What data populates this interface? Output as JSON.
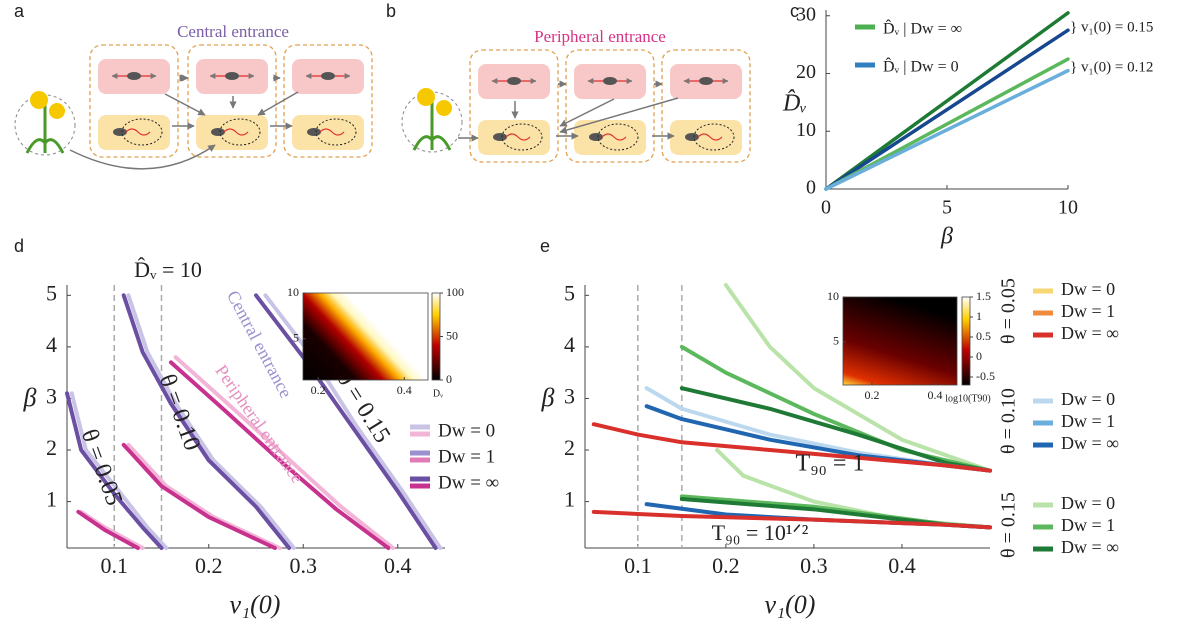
{
  "panel_labels": [
    "a",
    "b",
    "c",
    "d",
    "e"
  ],
  "diagrams": [
    {
      "title": "Central entrance"
    },
    {
      "title": "Peripheral entrance"
    }
  ],
  "chart_data": [
    {
      "type": "line",
      "xlabel": "β",
      "ylabel": "D̂ᵥ",
      "xlim": [
        0,
        10
      ],
      "ylim": [
        0,
        31
      ],
      "xticks": [
        0,
        5,
        10
      ],
      "yticks": [
        0,
        10,
        20,
        30
      ],
      "legend": [
        {
          "label": "D̂ᵥ | Dw = ∞",
          "colors": [
            "#4caf50"
          ]
        },
        {
          "label": "D̂ᵥ | Dw = 0",
          "colors": [
            "#2f7fc1"
          ]
        }
      ],
      "series": [
        {
          "color": "#1e7b34",
          "x": [
            0,
            10
          ],
          "values": [
            0,
            30.5
          ]
        },
        {
          "color": "#17478f",
          "x": [
            0,
            10
          ],
          "values": [
            0,
            27.5
          ]
        },
        {
          "color": "#5cb85c",
          "x": [
            0,
            10
          ],
          "values": [
            0,
            22.5
          ]
        },
        {
          "color": "#6aaedb",
          "x": [
            0,
            10
          ],
          "values": [
            0,
            20.5
          ]
        }
      ],
      "annotations": [
        "} v₁(0) = 0.15",
        "} v₁(0) = 0.12"
      ]
    },
    {
      "type": "line",
      "xlabel": "v₁(0)",
      "ylabel": "β",
      "xlim": [
        0.05,
        0.45
      ],
      "ylim": [
        0.1,
        5.2
      ],
      "xticks": [
        0.1,
        0.2,
        0.3,
        0.4
      ],
      "yticks": [
        1,
        2,
        3,
        4,
        5
      ],
      "vlines": [
        0.1,
        0.15
      ],
      "legend": [
        {
          "label": "Dw = 0",
          "colors": [
            "#c9c3e6",
            "#f2b5d8"
          ]
        },
        {
          "label": "Dw = 1",
          "colors": [
            "#9b8fcf",
            "#e07bb8"
          ]
        },
        {
          "label": "Dw = ∞",
          "colors": [
            "#6a4fa3",
            "#c8328f"
          ]
        }
      ],
      "series": [
        {
          "color": "#c9c3e6",
          "x": [
            0.055,
            0.07,
            0.105,
            0.135,
            0.155
          ],
          "values": [
            3.1,
            2.0,
            1.2,
            0.5,
            0.1
          ]
        },
        {
          "color": "#6a4fa3",
          "x": [
            0.05,
            0.065,
            0.1,
            0.13,
            0.15
          ],
          "values": [
            3.1,
            2.0,
            1.15,
            0.5,
            0.1
          ]
        },
        {
          "color": "#f2b5d8",
          "x": [
            0.065,
            0.09,
            0.13
          ],
          "values": [
            0.8,
            0.5,
            0.1
          ]
        },
        {
          "color": "#c8328f",
          "x": [
            0.062,
            0.09,
            0.125
          ],
          "values": [
            0.8,
            0.45,
            0.1
          ]
        },
        {
          "color": "#c9c3e6",
          "x": [
            0.115,
            0.135,
            0.165,
            0.205,
            0.255,
            0.29
          ],
          "values": [
            5.0,
            3.9,
            2.9,
            1.8,
            0.9,
            0.1
          ]
        },
        {
          "color": "#6a4fa3",
          "x": [
            0.11,
            0.13,
            0.16,
            0.2,
            0.25,
            0.285
          ],
          "values": [
            5.0,
            3.9,
            2.9,
            1.8,
            0.9,
            0.1
          ]
        },
        {
          "color": "#f2b5d8",
          "x": [
            0.115,
            0.155,
            0.205,
            0.275
          ],
          "values": [
            2.1,
            1.3,
            0.7,
            0.1
          ]
        },
        {
          "color": "#c8328f",
          "x": [
            0.11,
            0.15,
            0.2,
            0.27
          ],
          "values": [
            2.1,
            1.3,
            0.7,
            0.1
          ]
        },
        {
          "color": "#c9c3e6",
          "x": [
            0.26,
            0.31,
            0.355,
            0.405,
            0.445
          ],
          "values": [
            5.0,
            3.8,
            2.5,
            1.2,
            0.1
          ]
        },
        {
          "color": "#6a4fa3",
          "x": [
            0.25,
            0.3,
            0.35,
            0.4,
            0.44
          ],
          "values": [
            5.0,
            3.8,
            2.5,
            1.2,
            0.1
          ]
        },
        {
          "color": "#f2b5d8",
          "x": [
            0.165,
            0.22,
            0.28,
            0.34,
            0.395
          ],
          "values": [
            3.8,
            2.9,
            1.9,
            0.9,
            0.1
          ]
        },
        {
          "color": "#c8328f",
          "x": [
            0.16,
            0.215,
            0.275,
            0.335,
            0.39
          ],
          "values": [
            3.7,
            2.8,
            1.8,
            0.85,
            0.1
          ]
        }
      ],
      "annotations": [
        "D̂ᵥ = 10",
        "Central entrance",
        "Peripheral entrance",
        "θ = 0.05",
        "θ = 0.10",
        "θ = 0.15"
      ],
      "inset": {
        "xlim": [
          0.165,
          0.455
        ],
        "ylim": [
          0.5,
          10
        ],
        "xticks": [
          0.2,
          0.4
        ],
        "yticks": [
          5,
          10
        ],
        "clim": [
          0,
          100
        ],
        "cticks": [
          0,
          50,
          100
        ],
        "clabel": "Dᵥ"
      }
    },
    {
      "type": "line",
      "xlabel": "v₁(0)",
      "ylabel": "β",
      "xlim": [
        0.04,
        0.5
      ],
      "ylim": [
        0.1,
        5.2
      ],
      "xticks": [
        0.1,
        0.2,
        0.3,
        0.4
      ],
      "yticks": [
        1,
        2,
        3,
        4,
        5
      ],
      "vlines": [
        0.1,
        0.15
      ],
      "legend": [
        {
          "title": "θ = 0.05",
          "entries": [
            {
              "label": "Dw = 0",
              "color": "#f7d774"
            },
            {
              "label": "Dw = 1",
              "color": "#f08a3c"
            },
            {
              "label": "Dw = ∞",
              "color": "#d9302c"
            }
          ]
        },
        {
          "title": "θ = 0.10",
          "entries": [
            {
              "label": "Dw = 0",
              "color": "#bcd8ee"
            },
            {
              "label": "Dw = 1",
              "color": "#6aaedb"
            },
            {
              "label": "Dw = ∞",
              "color": "#2166b0"
            }
          ]
        },
        {
          "title": "θ = 0.15",
          "entries": [
            {
              "label": "Dw = 0",
              "color": "#b9e3a8"
            },
            {
              "label": "Dw = 1",
              "color": "#5cb85c"
            },
            {
              "label": "Dw = ∞",
              "color": "#1f7a35"
            }
          ]
        }
      ],
      "series": [
        {
          "color": "#b9e3a8",
          "x": [
            0.2,
            0.25,
            0.3,
            0.4,
            0.5
          ],
          "values": [
            5.2,
            4.0,
            3.2,
            2.2,
            1.6
          ]
        },
        {
          "color": "#b9e3a8",
          "x": [
            0.19,
            0.22,
            0.3,
            0.4,
            0.5
          ],
          "values": [
            2.0,
            1.5,
            1.0,
            0.65,
            0.5
          ]
        },
        {
          "color": "#5cb85c",
          "x": [
            0.15,
            0.2,
            0.3,
            0.4,
            0.5
          ],
          "values": [
            4.0,
            3.5,
            2.7,
            2.0,
            1.6
          ]
        },
        {
          "color": "#1f7a35",
          "x": [
            0.15,
            0.25,
            0.35,
            0.45,
            0.5
          ],
          "values": [
            3.2,
            2.8,
            2.3,
            1.75,
            1.6
          ]
        },
        {
          "color": "#5cb85c",
          "x": [
            0.15,
            0.3,
            0.45,
            0.5
          ],
          "values": [
            1.1,
            0.9,
            0.56,
            0.5
          ]
        },
        {
          "color": "#1f7a35",
          "x": [
            0.15,
            0.3,
            0.45,
            0.5
          ],
          "values": [
            1.05,
            0.85,
            0.55,
            0.5
          ]
        },
        {
          "color": "#bcd8ee",
          "x": [
            0.11,
            0.15,
            0.25,
            0.35,
            0.45,
            0.5
          ],
          "values": [
            3.2,
            2.8,
            2.3,
            1.95,
            1.7,
            1.6
          ]
        },
        {
          "color": "#2166b0",
          "x": [
            0.11,
            0.15,
            0.25,
            0.35,
            0.45,
            0.5
          ],
          "values": [
            2.85,
            2.6,
            2.2,
            1.9,
            1.7,
            1.6
          ]
        },
        {
          "color": "#2166b0",
          "x": [
            0.11,
            0.2,
            0.3,
            0.45,
            0.5
          ],
          "values": [
            0.95,
            0.75,
            0.65,
            0.55,
            0.5
          ]
        },
        {
          "color": "#d9302c",
          "x": [
            0.05,
            0.1,
            0.15,
            0.25,
            0.35,
            0.45,
            0.5
          ],
          "values": [
            2.5,
            2.3,
            2.15,
            2.0,
            1.85,
            1.7,
            1.6
          ]
        },
        {
          "color": "#d9302c",
          "x": [
            0.05,
            0.15,
            0.3,
            0.45,
            0.5
          ],
          "values": [
            0.8,
            0.72,
            0.65,
            0.55,
            0.5
          ]
        }
      ],
      "annotations": [
        "T₉₀ = 1",
        "T₉₀ = 10¹ᐟ²"
      ],
      "inset": {
        "xlim": [
          0.108,
          0.47
        ],
        "ylim": [
          0.2,
          10
        ],
        "xticks": [
          0.2,
          0.4
        ],
        "yticks": [
          5,
          10
        ],
        "clim": [
          -0.7,
          1.5
        ],
        "cticks": [
          -0.5,
          0,
          0.5,
          1,
          1.5
        ],
        "clabel": "log10(T90)"
      }
    }
  ]
}
